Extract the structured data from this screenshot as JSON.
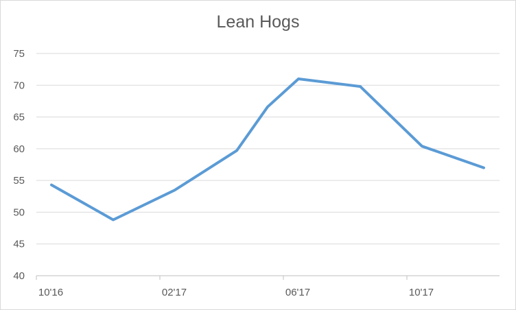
{
  "chart_data": {
    "type": "line",
    "title": "Lean Hogs",
    "xlabel": "",
    "ylabel": "",
    "ylim": [
      40,
      75
    ],
    "yticks": [
      40,
      45,
      50,
      55,
      60,
      65,
      70,
      75
    ],
    "x_tick_labels": [
      "10'16",
      "02'17",
      "06'17",
      "10'17"
    ],
    "grid": true,
    "legend": "none",
    "series": [
      {
        "color": "#5b9bd5",
        "points": [
          {
            "x": "2016-10-01",
            "y": 54.3
          },
          {
            "x": "2016-12-01",
            "y": 48.8
          },
          {
            "x": "2017-02-01",
            "y": 53.5
          },
          {
            "x": "2017-04-01",
            "y": 59.7
          },
          {
            "x": "2017-05-01",
            "y": 66.6
          },
          {
            "x": "2017-06-01",
            "y": 71.0
          },
          {
            "x": "2017-08-01",
            "y": 69.8
          },
          {
            "x": "2017-10-01",
            "y": 60.4
          },
          {
            "x": "2017-12-01",
            "y": 57.0
          }
        ]
      }
    ]
  }
}
